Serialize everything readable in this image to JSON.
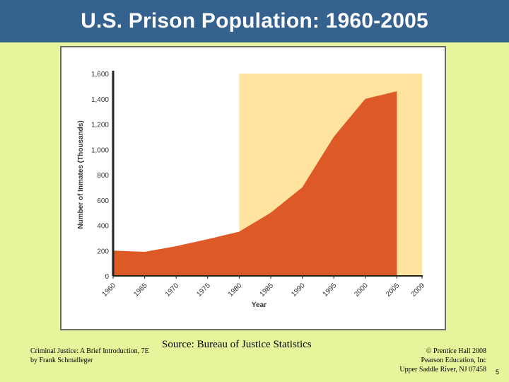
{
  "slide": {
    "title": "U.S. Prison Population: 1960-2005",
    "source": "Source: Bureau of Justice Statistics",
    "footer_left": [
      "Criminal Justice: A Brief Introduction, 7E",
      "by Frank Schmalleger"
    ],
    "footer_right": [
      "© Prentice Hall 2008",
      "Pearson Education, Inc",
      "Upper Saddle River, NJ 07458"
    ],
    "page_number": "5"
  },
  "colors": {
    "title_bar": "#35618f",
    "background": "#e6f59c",
    "area_fill": "#dd5a27",
    "highlight_band": "#ffe39e",
    "axis": "#222222"
  },
  "chart_data": {
    "type": "area",
    "xlabel": "Year",
    "ylabel": "Number of Inmates (Thousands)",
    "x": [
      1960,
      1965,
      1970,
      1975,
      1980,
      1985,
      1990,
      1995,
      2000,
      2005
    ],
    "values": [
      200,
      190,
      235,
      290,
      350,
      500,
      700,
      1100,
      1400,
      1460
    ],
    "x_ticks": [
      "1960",
      "1965",
      "1970",
      "1975",
      "1980",
      "1985",
      "1990",
      "1995",
      "2000",
      "2005",
      "2009"
    ],
    "y_ticks": [
      "0",
      "200",
      "400",
      "600",
      "800",
      "1,000",
      "1,200",
      "1,400",
      "1,600"
    ],
    "ylim": [
      0,
      1600
    ],
    "xlim": [
      1960,
      2009
    ],
    "highlight_range": [
      1980,
      2009
    ],
    "grid": false
  }
}
